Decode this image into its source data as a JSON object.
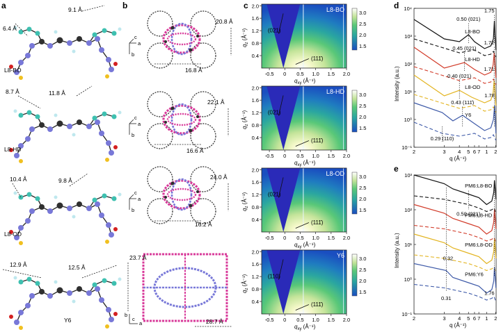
{
  "panel_labels": {
    "a": "a",
    "b": "b",
    "c": "c",
    "d": "d",
    "e": "e"
  },
  "colors": {
    "carbon": "#2f2f2f",
    "nitrogen": "#7878d8",
    "side_chain": "#3ec0b0",
    "hydrogen": "#bfe8ee",
    "fluorine": "#f0c020",
    "oxygen": "#d42020",
    "pink": "#d83a9a",
    "gradient_low": "#1a4ec0",
    "gradient_mid": "#5ac878",
    "gradient_high": "#ffffff",
    "beam": "#2a2ab8",
    "L8-BO": "#111111",
    "L8-HD": "#d23c2a",
    "L8-OD": "#e3b420",
    "Y6": "#3e5aa8"
  },
  "panel_a": {
    "rows": [
      {
        "name": "L8-BO",
        "d1": "6.4 Å",
        "d2": "9.1 Å"
      },
      {
        "name": "L8-HD",
        "d1": "8.7 Å",
        "d2": "11.8 Å"
      },
      {
        "name": "L8-OD",
        "d1": "10.4 Å",
        "d2": "9.8 Å"
      },
      {
        "name": "Y6",
        "d1": "12.9 Å",
        "d2": "12.5 Å"
      }
    ]
  },
  "panel_b": {
    "rows": [
      {
        "h": "16.8 Å",
        "v": "20.8 Å",
        "axes": [
          "c",
          "a",
          "b"
        ]
      },
      {
        "h": "16.6 Å",
        "v": "22.1 Å",
        "axes": [
          "c",
          "a",
          "b"
        ]
      },
      {
        "h": "16.2 Å",
        "v": "24.0 Å",
        "axes": [
          "c",
          "a",
          "b"
        ]
      },
      {
        "h": "28.7 Å",
        "v": "23.7 Å",
        "axes": [
          "b",
          "a",
          "c"
        ]
      }
    ]
  },
  "panel_c": {
    "xlabel_main": "q",
    "xlabel_sub": "xy",
    "xlabel_unit": " (Å⁻¹)",
    "ylabel_main": "q",
    "ylabel_sub": "z",
    "ylabel_unit": " (Å⁻¹)",
    "xticks": [
      "-0.5",
      "0",
      "0.5",
      "1.0",
      "1.5",
      "2.0"
    ],
    "yticks": [
      "0.4",
      "0.8",
      "1.2",
      "1.6",
      "2.0"
    ],
    "cbar_ticks": [
      "3.0",
      "2.5",
      "2.0",
      "1.5"
    ],
    "rows": [
      {
        "name": "L8-BO",
        "peak1": "(021)",
        "peak2": "(111̄)"
      },
      {
        "name": "L8-HD",
        "peak1": "(021)",
        "peak2": "(111̄)"
      },
      {
        "name": "L8-OD",
        "peak1": "(021)",
        "peak2": "(111̄)"
      },
      {
        "name": "Y6",
        "peak1": "(110)",
        "peak2": "(111̄)"
      }
    ]
  },
  "chart_data": [
    {
      "type": "line",
      "panel": "d",
      "xlabel": "q (Å⁻¹)",
      "ylabel": "Intensity (a.u.)",
      "x_scale": "reciprocal",
      "xticks": [
        "2",
        "3",
        "4",
        "5",
        "6",
        "7",
        "1",
        "2"
      ],
      "yticks": [
        "10⁻¹",
        "10⁰",
        "10¹",
        "10²",
        "10³",
        "10⁴"
      ],
      "ylim_exp": [
        -1,
        4
      ],
      "series": [
        {
          "name": "L8-BO",
          "color": "#111111",
          "offset": 3,
          "peak_labels": [
            "0.50 (021)",
            "1.75"
          ],
          "ip": [
            [
              0.2,
              0.6
            ],
            [
              0.3,
              -0.1
            ],
            [
              0.4,
              -0.2
            ],
            [
              0.5,
              0.05
            ],
            [
              0.6,
              -0.2
            ],
            [
              0.9,
              -0.45
            ],
            [
              1.3,
              -0.35
            ],
            [
              1.6,
              -0.1
            ],
            [
              1.75,
              0.55
            ],
            [
              1.85,
              0.05
            ],
            [
              2.05,
              -0.5
            ]
          ],
          "oop": [
            [
              0.2,
              -0.1
            ],
            [
              0.4,
              -0.6
            ],
            [
              0.6,
              -0.5
            ],
            [
              0.9,
              -0.7
            ],
            [
              1.3,
              -0.65
            ],
            [
              1.6,
              -0.55
            ],
            [
              2.05,
              -0.75
            ]
          ]
        },
        {
          "name": "L8-HD",
          "color": "#d23c2a",
          "offset": 2,
          "peak_labels": [
            "0.45 (021)",
            "1.72"
          ],
          "ip": [
            [
              0.2,
              0.6
            ],
            [
              0.3,
              -0.15
            ],
            [
              0.45,
              0.05
            ],
            [
              0.6,
              -0.2
            ],
            [
              0.9,
              -0.4
            ],
            [
              1.3,
              -0.3
            ],
            [
              1.55,
              -0.05
            ],
            [
              1.72,
              0.4
            ],
            [
              1.85,
              0.0
            ],
            [
              2.05,
              -0.5
            ]
          ],
          "oop": [
            [
              0.2,
              -0.1
            ],
            [
              0.4,
              -0.6
            ],
            [
              0.6,
              -0.5
            ],
            [
              0.9,
              -0.7
            ],
            [
              1.3,
              -0.65
            ],
            [
              1.6,
              -0.55
            ],
            [
              2.05,
              -0.75
            ]
          ]
        },
        {
          "name": "L8-OD",
          "color": "#e3b420",
          "offset": 1,
          "peak_labels": [
            "0.40 (021)",
            "1.71"
          ],
          "ip": [
            [
              0.2,
              0.6
            ],
            [
              0.3,
              -0.15
            ],
            [
              0.4,
              0.05
            ],
            [
              0.55,
              -0.2
            ],
            [
              0.9,
              -0.4
            ],
            [
              1.3,
              -0.3
            ],
            [
              1.55,
              -0.05
            ],
            [
              1.71,
              0.4
            ],
            [
              1.85,
              0.0
            ],
            [
              2.05,
              -0.5
            ]
          ],
          "oop": [
            [
              0.2,
              -0.1
            ],
            [
              0.4,
              -0.6
            ],
            [
              0.6,
              -0.5
            ],
            [
              0.9,
              -0.7
            ],
            [
              1.3,
              -0.65
            ],
            [
              1.6,
              -0.55
            ],
            [
              2.05,
              -0.75
            ]
          ]
        },
        {
          "name": "Y6",
          "color": "#3e5aa8",
          "offset": 0,
          "peak_labels": [
            "0.29 (110)",
            "0.43 (111̄)",
            "1.78"
          ],
          "ip": [
            [
              0.2,
              0.6
            ],
            [
              0.29,
              0.25
            ],
            [
              0.35,
              -0.05
            ],
            [
              0.43,
              0.15
            ],
            [
              0.6,
              -0.15
            ],
            [
              0.9,
              -0.4
            ],
            [
              1.3,
              -0.3
            ],
            [
              1.6,
              0.0
            ],
            [
              1.78,
              0.5
            ],
            [
              1.9,
              0.0
            ],
            [
              2.05,
              -0.5
            ]
          ],
          "oop": [
            [
              0.2,
              -0.1
            ],
            [
              0.29,
              -0.5
            ],
            [
              0.4,
              -0.6
            ],
            [
              0.6,
              -0.5
            ],
            [
              0.9,
              -0.7
            ],
            [
              1.3,
              -0.65
            ],
            [
              1.6,
              -0.55
            ],
            [
              2.05,
              -0.75
            ]
          ]
        }
      ]
    },
    {
      "type": "line",
      "panel": "e",
      "xlabel": "q (Å⁻¹)",
      "ylabel": "Intensity (a.u.)",
      "x_scale": "reciprocal",
      "xticks": [
        "2",
        "3",
        "4",
        "5",
        "6",
        "7",
        "1",
        "2"
      ],
      "yticks": [
        "10⁻¹",
        "10⁰",
        "10¹",
        "10²",
        "10³"
      ],
      "ylim_exp": [
        -1,
        3
      ],
      "series": [
        {
          "name": "PM6:L8-BO",
          "color": "#111111",
          "offset": 2.55,
          "peak_labels": [
            "0.50 (021)"
          ],
          "ip": [
            [
              0.2,
              0.45
            ],
            [
              0.3,
              0.2
            ],
            [
              0.35,
              0.05
            ],
            [
              0.5,
              -0.1
            ],
            [
              0.7,
              -0.2
            ],
            [
              1.0,
              -0.4
            ],
            [
              1.4,
              -0.3
            ],
            [
              1.65,
              -0.05
            ],
            [
              1.76,
              0.3
            ],
            [
              1.9,
              0.05
            ],
            [
              2.05,
              -0.25
            ]
          ],
          "oop": [
            [
              0.2,
              -0.15
            ],
            [
              0.3,
              -0.25
            ],
            [
              0.5,
              -0.4
            ],
            [
              0.7,
              -0.5
            ],
            [
              1.0,
              -0.6
            ],
            [
              1.4,
              -0.55
            ],
            [
              1.7,
              -0.5
            ],
            [
              2.05,
              -0.65
            ]
          ]
        },
        {
          "name": "PM6:L8-HD",
          "color": "#d23c2a",
          "offset": 1.7,
          "peak_labels": [],
          "ip": [
            [
              0.2,
              0.45
            ],
            [
              0.3,
              0.2
            ],
            [
              0.35,
              0.05
            ],
            [
              0.5,
              -0.1
            ],
            [
              0.7,
              -0.2
            ],
            [
              1.0,
              -0.4
            ],
            [
              1.4,
              -0.3
            ],
            [
              1.65,
              -0.05
            ],
            [
              1.76,
              0.3
            ],
            [
              1.9,
              0.05
            ],
            [
              2.05,
              -0.25
            ]
          ],
          "oop": [
            [
              0.2,
              -0.15
            ],
            [
              0.3,
              -0.25
            ],
            [
              0.5,
              -0.4
            ],
            [
              0.7,
              -0.5
            ],
            [
              1.0,
              -0.6
            ],
            [
              1.4,
              -0.55
            ],
            [
              1.7,
              -0.5
            ],
            [
              2.05,
              -0.65
            ]
          ]
        },
        {
          "name": "PM6:L8-OD",
          "color": "#e3b420",
          "offset": 0.85,
          "peak_labels": [
            "0.32"
          ],
          "ip": [
            [
              0.2,
              0.45
            ],
            [
              0.3,
              0.2
            ],
            [
              0.35,
              0.05
            ],
            [
              0.5,
              -0.1
            ],
            [
              0.7,
              -0.2
            ],
            [
              1.0,
              -0.4
            ],
            [
              1.4,
              -0.3
            ],
            [
              1.65,
              -0.05
            ],
            [
              1.76,
              0.3
            ],
            [
              1.9,
              0.05
            ],
            [
              2.05,
              -0.25
            ]
          ],
          "oop": [
            [
              0.2,
              -0.15
            ],
            [
              0.3,
              -0.25
            ],
            [
              0.5,
              -0.4
            ],
            [
              0.7,
              -0.5
            ],
            [
              1.0,
              -0.6
            ],
            [
              1.4,
              -0.55
            ],
            [
              1.7,
              -0.5
            ],
            [
              2.05,
              -0.65
            ]
          ]
        },
        {
          "name": "PM6:Y6",
          "color": "#3e5aa8",
          "offset": 0,
          "peak_labels": [
            "0.31",
            "1.76"
          ],
          "ip": [
            [
              0.2,
              0.45
            ],
            [
              0.31,
              0.25
            ],
            [
              0.35,
              0.05
            ],
            [
              0.5,
              -0.1
            ],
            [
              0.7,
              -0.2
            ],
            [
              1.0,
              -0.4
            ],
            [
              1.4,
              -0.3
            ],
            [
              1.65,
              -0.05
            ],
            [
              1.76,
              0.35
            ],
            [
              1.9,
              0.05
            ],
            [
              2.05,
              -0.25
            ]
          ],
          "oop": [
            [
              0.2,
              -0.15
            ],
            [
              0.3,
              -0.25
            ],
            [
              0.5,
              -0.4
            ],
            [
              0.7,
              -0.5
            ],
            [
              1.0,
              -0.6
            ],
            [
              1.4,
              -0.55
            ],
            [
              1.7,
              -0.5
            ],
            [
              2.05,
              -0.65
            ]
          ]
        }
      ]
    }
  ]
}
